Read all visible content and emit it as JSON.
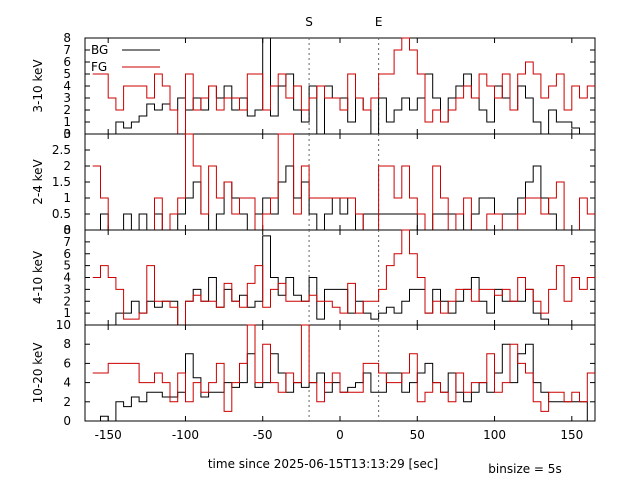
{
  "chart_data": {
    "type": "line",
    "xlabel": "time since 2025-06-15T13:13:29 [sec]",
    "binsize_label": "binsize = 5s",
    "xlim": [
      -165,
      165
    ],
    "xticks": [
      -150,
      -100,
      -50,
      0,
      50,
      100,
      150
    ],
    "markers": [
      {
        "label": "S",
        "x": -20
      },
      {
        "label": "E",
        "x": 25
      }
    ],
    "series_colors": {
      "BG": "#000000",
      "FG": "#cc0000"
    },
    "legend": {
      "entries": [
        "BG",
        "FG"
      ],
      "position": "top-left"
    },
    "bin_edges": [
      -160,
      -155,
      -150,
      -145,
      -140,
      -135,
      -130,
      -125,
      -120,
      -115,
      -110,
      -105,
      -100,
      -95,
      -90,
      -85,
      -80,
      -75,
      -70,
      -65,
      -60,
      -55,
      -50,
      -45,
      -40,
      -35,
      -30,
      -25,
      -20,
      -15,
      -10,
      -5,
      0,
      5,
      10,
      15,
      20,
      25,
      30,
      35,
      40,
      45,
      50,
      55,
      60,
      65,
      70,
      75,
      80,
      85,
      90,
      95,
      100,
      105,
      110,
      115,
      120,
      125,
      130,
      135,
      140,
      145,
      150,
      155,
      160,
      165
    ],
    "panels": [
      {
        "ylabel": "3-10 keV",
        "ylim": [
          0,
          8
        ],
        "yticks": [
          0,
          1,
          2,
          3,
          4,
          5,
          6,
          7,
          8
        ],
        "yticklabels": [
          "0",
          "1",
          "2",
          "3",
          "4",
          "5",
          "6",
          "7",
          "8"
        ],
        "BG": [
          0,
          0,
          0,
          1,
          0.5,
          1,
          1.5,
          2.5,
          2,
          2.5,
          2,
          3,
          2,
          3,
          2,
          4,
          3,
          4,
          2,
          3,
          1.5,
          2,
          8,
          1.5,
          4,
          5,
          2,
          1,
          4,
          0,
          4,
          3,
          3,
          1,
          3,
          2,
          0,
          3,
          1,
          2,
          3,
          2,
          3,
          5,
          3,
          1,
          3,
          4,
          5,
          3,
          2,
          1,
          4,
          3,
          2,
          4,
          3,
          1,
          0,
          2,
          1,
          1,
          0.5,
          0,
          0
        ],
        "FG": [
          5,
          5,
          3,
          2,
          4,
          4,
          4,
          3,
          5,
          4,
          2,
          0,
          5,
          2,
          3,
          4,
          2,
          3,
          3,
          2,
          5,
          5,
          2,
          4,
          5,
          3,
          4,
          2,
          3,
          4,
          3,
          3,
          2,
          5,
          3,
          2,
          3,
          5,
          5,
          7,
          8,
          7,
          5,
          1,
          2,
          1,
          2,
          3,
          4,
          3,
          5,
          4,
          3,
          5,
          2,
          5,
          6,
          5,
          3,
          4,
          5,
          2,
          4,
          3,
          4
        ]
      },
      {
        "ylabel": "2-4 keV",
        "ylim": [
          0,
          3
        ],
        "yticks": [
          0,
          0.5,
          1,
          1.5,
          2,
          2.5,
          3
        ],
        "yticklabels": [
          "0",
          "0.5",
          "1",
          "1.5",
          "2",
          "2.5",
          "3"
        ],
        "BG": [
          0,
          0.5,
          0,
          0,
          0.5,
          0,
          0.5,
          0,
          0.5,
          0,
          0,
          0.5,
          1,
          1.5,
          0.5,
          0,
          0.5,
          1.5,
          1,
          0.5,
          0,
          0.5,
          1,
          0.5,
          1.5,
          2,
          1,
          1.5,
          0.5,
          0,
          0.5,
          1,
          0.5,
          1,
          0,
          0.5,
          0.5,
          0.5,
          0.5,
          0.5,
          0.5,
          0.5,
          0,
          0,
          0.5,
          0.5,
          0.5,
          0.5,
          0,
          0.5,
          1,
          1,
          0.5,
          0.5,
          0.5,
          1,
          1.5,
          2,
          1,
          0.5,
          0,
          0,
          0,
          0,
          0
        ],
        "FG": [
          2,
          1,
          0,
          0,
          0,
          0,
          0,
          0,
          1,
          0,
          0.5,
          1,
          3,
          2,
          0.5,
          2,
          1,
          1.5,
          0.5,
          1,
          1,
          0,
          0.5,
          1,
          3,
          3,
          0.5,
          2,
          1,
          1,
          1,
          1,
          1,
          1,
          0.5,
          0,
          0,
          2,
          2,
          1,
          2,
          1,
          0.5,
          0,
          2,
          1,
          0,
          0.5,
          1,
          0,
          0,
          0.5,
          0.5,
          0,
          0,
          0.5,
          1,
          1,
          0.5,
          1,
          1.5,
          0,
          0,
          1,
          0.5
        ]
      },
      {
        "ylabel": "4-10 keV",
        "ylim": [
          0,
          8
        ],
        "yticks": [
          1,
          2,
          3,
          4,
          5,
          6,
          7,
          8
        ],
        "yticklabels": [
          "1",
          "2",
          "3",
          "4",
          "5",
          "6",
          "7",
          "8"
        ],
        "BG": [
          0,
          0,
          0,
          1,
          1,
          2,
          1,
          2,
          1.5,
          2,
          2,
          0,
          2,
          3,
          2,
          4,
          1.5,
          3,
          2,
          2.5,
          1.5,
          2,
          7.5,
          4,
          2.5,
          4,
          2.5,
          2,
          4,
          0.5,
          3,
          3,
          3,
          1,
          2,
          1,
          0.5,
          1,
          1.5,
          1,
          2,
          3,
          3,
          1,
          3,
          2,
          1,
          2,
          3,
          4,
          2,
          1,
          3,
          2,
          2,
          2,
          3,
          1,
          0.5,
          0,
          0,
          0,
          0,
          0,
          0
        ],
        "FG": [
          4,
          5,
          4,
          3,
          0.5,
          0.5,
          1,
          5,
          2,
          2,
          1.5,
          0,
          2,
          2.5,
          2,
          2,
          1.5,
          3.5,
          2,
          1.5,
          3.5,
          5,
          1.5,
          3,
          3.5,
          2,
          2,
          2,
          2.5,
          2,
          2,
          1.5,
          1,
          3.5,
          1,
          2,
          2,
          3,
          5,
          6,
          8,
          6,
          4,
          1,
          2,
          1,
          2,
          3,
          3,
          2,
          3,
          3,
          2.5,
          3,
          2,
          4,
          3,
          2,
          1,
          3,
          5,
          2,
          4,
          3,
          4
        ]
      },
      {
        "ylabel": "10-20 keV",
        "ylim": [
          0,
          10
        ],
        "yticks": [
          0,
          2,
          4,
          6,
          8,
          10
        ],
        "yticklabels": [
          "0",
          "2",
          "4",
          "6",
          "8",
          "10"
        ],
        "BG": [
          0,
          0.5,
          0,
          2,
          1.5,
          2.5,
          2,
          3,
          3,
          2.5,
          2.5,
          3,
          7,
          4.5,
          2.5,
          3,
          3,
          4,
          3.5,
          4,
          7,
          3.5,
          4,
          7,
          5,
          3,
          4,
          3.5,
          4,
          5,
          3,
          4,
          3,
          3.5,
          4,
          5,
          3,
          3,
          5,
          5,
          3,
          4,
          5,
          6,
          4,
          3,
          5,
          3,
          2,
          3,
          4,
          3,
          5,
          8,
          4,
          7,
          8,
          4,
          3,
          2,
          2,
          2,
          2,
          2,
          0
        ],
        "FG": [
          5,
          5,
          6,
          6,
          6,
          6,
          4,
          4,
          5,
          4,
          2,
          5,
          2,
          4,
          3,
          4,
          6,
          1,
          4,
          6,
          10,
          4,
          8,
          4,
          3,
          5,
          4,
          10,
          4,
          2,
          4,
          5,
          3,
          3,
          3,
          6,
          6,
          5,
          4,
          4,
          5,
          7,
          2,
          3,
          4,
          3,
          2,
          5,
          3,
          4,
          4,
          7,
          3,
          4,
          8,
          6,
          5,
          2,
          1,
          3,
          3,
          2,
          3,
          2,
          5
        ]
      }
    ]
  }
}
